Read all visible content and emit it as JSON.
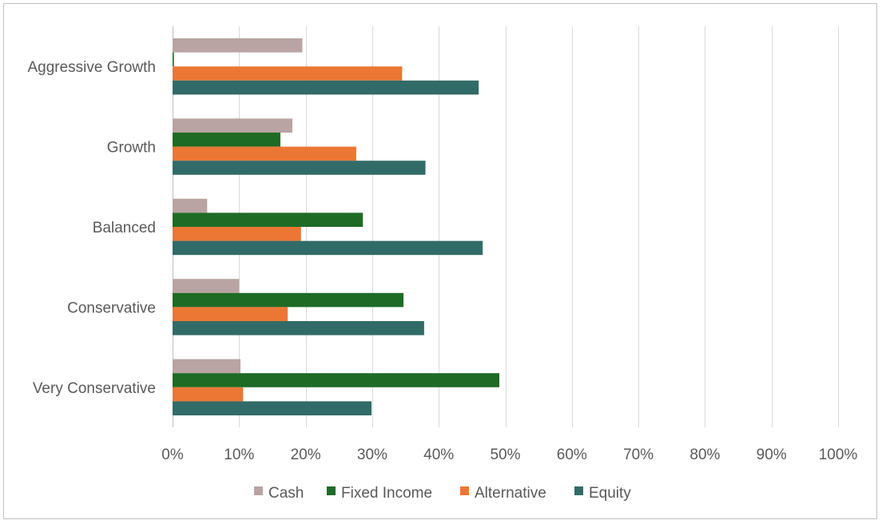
{
  "chart_data": {
    "type": "bar",
    "orientation": "horizontal",
    "categories": [
      "Aggressive Growth",
      "Growth",
      "Balanced",
      "Conservative",
      "Very Conservative"
    ],
    "series": [
      {
        "name": "Cash",
        "color": "#b9a3a3",
        "values": [
          19.5,
          18.0,
          5.2,
          10.0,
          10.2
        ]
      },
      {
        "name": "Fixed Income",
        "color": "#1e6b25",
        "values": [
          0.2,
          16.2,
          28.6,
          34.7,
          49.1
        ]
      },
      {
        "name": "Alternative",
        "color": "#ec7735",
        "values": [
          34.5,
          27.6,
          19.3,
          17.3,
          10.6
        ]
      },
      {
        "name": "Equity",
        "color": "#316b67",
        "values": [
          46.0,
          38.0,
          46.6,
          37.8,
          29.9
        ]
      }
    ],
    "xlim": [
      0,
      100
    ],
    "xticks": [
      "0%",
      "10%",
      "20%",
      "30%",
      "40%",
      "50%",
      "60%",
      "70%",
      "80%",
      "90%",
      "100%"
    ],
    "grid": "vertical",
    "legend_position": "bottom"
  }
}
